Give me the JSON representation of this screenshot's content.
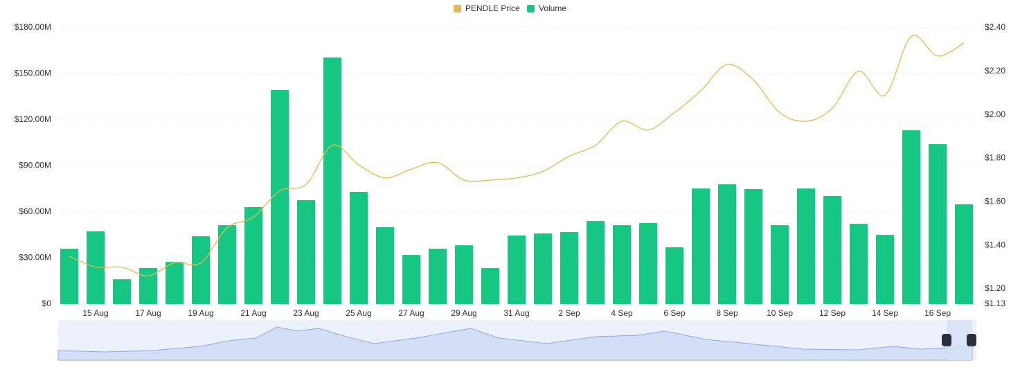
{
  "chart_data": {
    "type": "bar_line",
    "categories": [
      null,
      "15 Aug",
      null,
      "17 Aug",
      null,
      "19 Aug",
      null,
      "21 Aug",
      null,
      "23 Aug",
      null,
      "25 Aug",
      null,
      "27 Aug",
      null,
      "29 Aug",
      null,
      "31 Aug",
      null,
      "2 Sep",
      null,
      "4 Sep",
      null,
      "6 Sep",
      null,
      "8 Sep",
      null,
      "10 Sep",
      null,
      "12 Sep",
      null,
      "14 Sep",
      null,
      "16 Sep",
      null
    ],
    "series": [
      {
        "name": "PENDLE Price",
        "color": "#e8b84a",
        "axis": "y2",
        "kind": "line",
        "values": [
          1.35,
          1.3,
          1.3,
          1.26,
          1.32,
          1.32,
          1.48,
          1.53,
          1.65,
          1.68,
          1.86,
          1.77,
          1.71,
          1.75,
          1.78,
          1.7,
          1.7,
          1.71,
          1.74,
          1.81,
          1.86,
          1.97,
          1.93,
          2.01,
          2.11,
          2.23,
          2.16,
          2.01,
          1.97,
          2.03,
          2.2,
          2.09,
          2.36,
          2.27,
          2.33
        ]
      },
      {
        "name": "Volume",
        "color": "#16c784",
        "kind": "bar",
        "values": [
          36100000,
          47400000,
          16200000,
          23500000,
          27500000,
          44200000,
          51400000,
          63200000,
          139400000,
          67700000,
          160600000,
          73100000,
          50100000,
          32000000,
          36100000,
          38300000,
          23500000,
          44700000,
          46000000,
          46900000,
          54100000,
          51400000,
          52800000,
          37000000,
          75300000,
          78000000,
          74900000,
          51400000,
          75300000,
          70400000,
          52300000,
          45100000,
          113200000,
          104200000,
          65000000
        ]
      }
    ],
    "ylim": [
      0,
      180000000
    ],
    "yticks": [
      {
        "value": 0,
        "label": "$0"
      },
      {
        "value": 30000000,
        "label": "$30.00M"
      },
      {
        "value": 60000000,
        "label": "$60.00M"
      },
      {
        "value": 90000000,
        "label": "$90.00M"
      },
      {
        "value": 120000000,
        "label": "$120.00M"
      },
      {
        "value": 150000000,
        "label": "$150.00M"
      },
      {
        "value": 180000000,
        "label": "$180.00M"
      }
    ],
    "y2lim": [
      1.13,
      2.4
    ],
    "y2ticks": [
      {
        "value": 1.13,
        "label": "$1.13"
      },
      {
        "value": 1.2,
        "label": "$1.20"
      },
      {
        "value": 1.4,
        "label": "$1.40"
      },
      {
        "value": 1.6,
        "label": "$1.60"
      },
      {
        "value": 1.8,
        "label": "$1.80"
      },
      {
        "value": 2.0,
        "label": "$2.00"
      },
      {
        "value": 2.2,
        "label": "$2.20"
      },
      {
        "value": 2.4,
        "label": "$2.40"
      }
    ],
    "grid": true,
    "legend": "top"
  }
}
